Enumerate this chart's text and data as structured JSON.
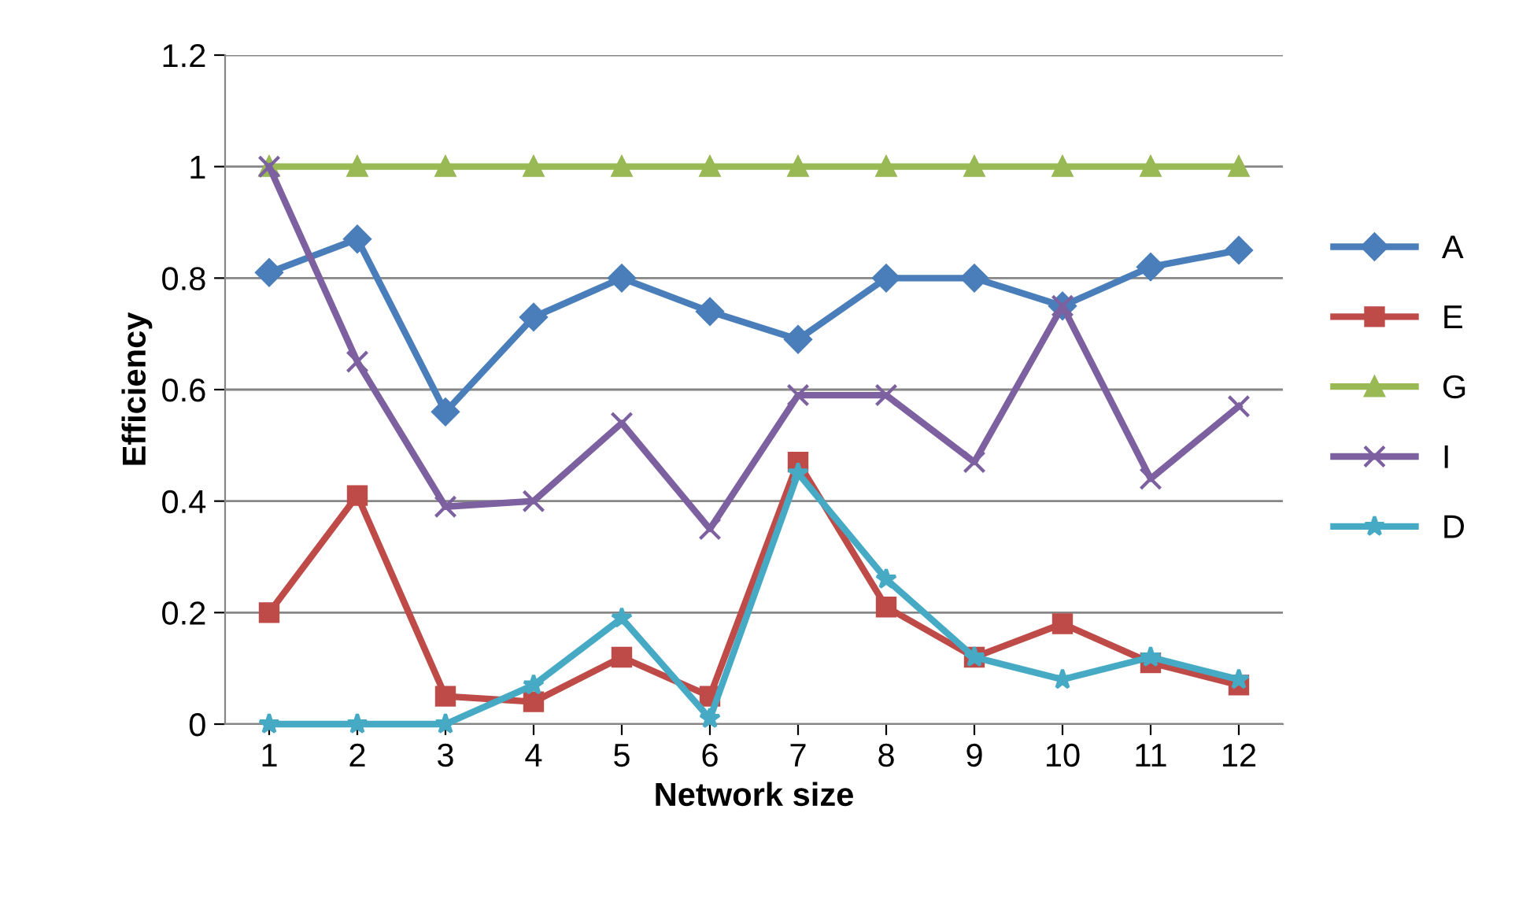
{
  "chart_data": {
    "type": "line",
    "xlabel": "Network size",
    "ylabel": "Efficiency",
    "categories": [
      "1",
      "2",
      "3",
      "4",
      "5",
      "6",
      "7",
      "8",
      "9",
      "10",
      "11",
      "12"
    ],
    "series": [
      {
        "name": "A",
        "color": "#4a7ebb",
        "marker": "diamond",
        "values": [
          0.81,
          0.87,
          0.56,
          0.73,
          0.8,
          0.74,
          0.69,
          0.8,
          0.8,
          0.75,
          0.82,
          0.85
        ]
      },
      {
        "name": "E",
        "color": "#be4b48",
        "marker": "square",
        "values": [
          0.2,
          0.41,
          0.05,
          0.04,
          0.12,
          0.05,
          0.47,
          0.21,
          0.12,
          0.18,
          0.11,
          0.07
        ]
      },
      {
        "name": "G",
        "color": "#98b954",
        "marker": "triangle",
        "values": [
          1,
          1,
          1,
          1,
          1,
          1,
          1,
          1,
          1,
          1,
          1,
          1
        ]
      },
      {
        "name": "I",
        "color": "#7d60a0",
        "marker": "cross",
        "values": [
          1,
          0.65,
          0.39,
          0.4,
          0.54,
          0.35,
          0.59,
          0.59,
          0.47,
          0.75,
          0.44,
          0.57
        ]
      },
      {
        "name": "D",
        "color": "#46aac5",
        "marker": "star",
        "values": [
          0,
          0,
          0,
          0.07,
          0.19,
          0.01,
          0.45,
          0.26,
          0.12,
          0.08,
          0.12,
          0.08
        ]
      }
    ],
    "ylim": [
      0,
      1.2
    ],
    "yticks": [
      0,
      0.2,
      0.4,
      0.6,
      0.8,
      1,
      1.2
    ],
    "grid": "y",
    "legend": "right",
    "line_style": "solid"
  }
}
